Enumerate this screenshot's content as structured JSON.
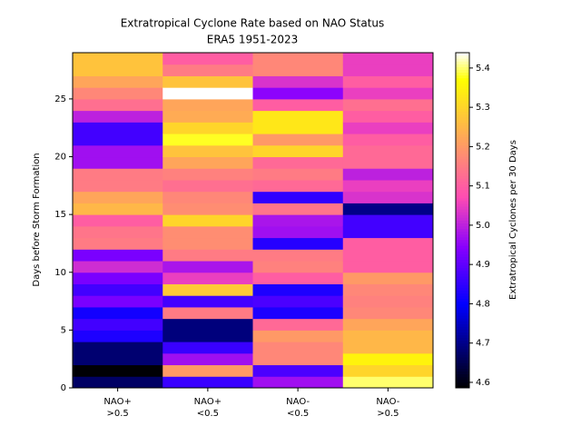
{
  "chart_data": {
    "type": "heatmap",
    "title": "Extratropical Cyclone Rate based on NAO Status",
    "subtitle": "ERA5 1951-2023",
    "y_label": "Days before Storm Formation",
    "categories": [
      "NAO+\n>0.5",
      "NAO+\n<0.5",
      "NAO-\n<0.5",
      "NAO-\n>0.5"
    ],
    "values": [
      [
        4.67,
        4.59,
        4.68,
        4.68,
        4.83,
        4.87,
        4.82,
        4.93,
        4.87,
        4.93,
        5.02,
        4.93,
        5.15,
        5.14,
        5.1,
        5.25,
        5.22,
        5.15,
        5.15,
        4.97,
        4.97,
        4.87,
        4.87,
        5.0,
        5.13,
        5.17,
        5.22,
        5.27,
        5.27
      ],
      [
        4.86,
        5.2,
        4.97,
        4.86,
        4.69,
        4.69,
        5.15,
        4.87,
        5.28,
        5.05,
        4.98,
        5.15,
        5.18,
        5.18,
        5.3,
        5.18,
        5.17,
        5.13,
        5.16,
        5.22,
        5.27,
        5.38,
        5.3,
        5.23,
        5.22,
        5.44,
        5.27,
        5.15,
        5.1
      ],
      [
        4.97,
        4.88,
        5.17,
        5.17,
        5.2,
        5.12,
        4.83,
        4.88,
        4.83,
        5.1,
        5.16,
        5.15,
        4.84,
        4.97,
        4.98,
        5.14,
        4.85,
        5.12,
        5.15,
        5.12,
        5.3,
        5.2,
        5.33,
        5.33,
        5.1,
        4.95,
        5.03,
        5.17,
        5.17
      ],
      [
        5.4,
        5.3,
        5.35,
        5.25,
        5.25,
        5.22,
        5.17,
        5.16,
        5.17,
        5.2,
        5.1,
        5.1,
        5.1,
        4.87,
        4.87,
        4.7,
        5.03,
        5.05,
        5.0,
        5.12,
        5.12,
        5.1,
        5.05,
        5.1,
        5.13,
        5.05,
        5.1,
        5.05,
        5.05
      ]
    ],
    "ylim": [
      0,
      29
    ],
    "yticks": [
      0,
      5,
      10,
      15,
      20,
      25
    ],
    "colormap": "gnuplot2",
    "colorbar": {
      "label": "Extratropical Cyclones per 30 Days",
      "lim": [
        4.586,
        5.439
      ],
      "ticks": [
        4.6,
        4.7,
        4.8,
        4.9,
        {
          "value": 5,
          "label": "5.0"
        },
        5.1,
        5.2,
        5.3,
        5.4
      ]
    }
  }
}
